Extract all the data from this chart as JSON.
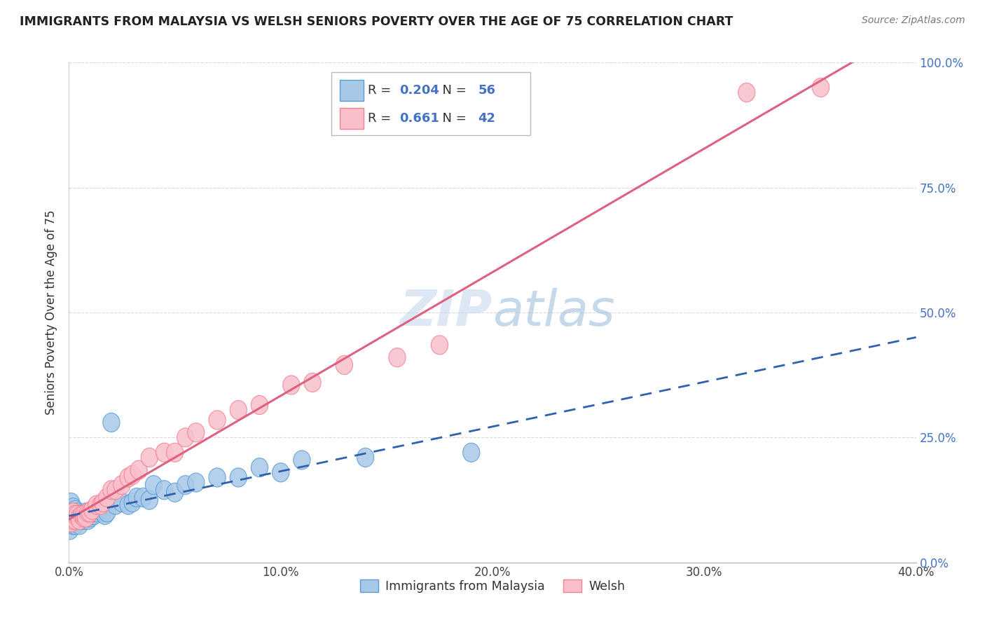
{
  "title": "IMMIGRANTS FROM MALAYSIA VS WELSH SENIORS POVERTY OVER THE AGE OF 75 CORRELATION CHART",
  "source": "Source: ZipAtlas.com",
  "xmin": 0.0,
  "xmax": 0.4,
  "ymin": 0.0,
  "ymax": 1.0,
  "x_tick_labels": [
    "0.0%",
    "10.0%",
    "20.0%",
    "30.0%",
    "40.0%"
  ],
  "x_tick_vals": [
    0.0,
    0.1,
    0.2,
    0.3,
    0.4
  ],
  "y_tick_labels": [
    "100.0%",
    "75.0%",
    "50.0%",
    "25.0%",
    "0.0%"
  ],
  "y_tick_vals": [
    1.0,
    0.75,
    0.5,
    0.25,
    0.0
  ],
  "legend1_label": "Immigrants from Malaysia",
  "legend2_label": "Welsh",
  "R1": "0.204",
  "N1": "56",
  "R2": "0.661",
  "N2": "42",
  "blue_face": "#a8c8e8",
  "blue_edge": "#5b9bd5",
  "pink_face": "#f9c0cc",
  "pink_edge": "#f48090",
  "blue_line_color": "#3060b0",
  "pink_line_color": "#e06080",
  "watermark_text": "ZIPatlas",
  "watermark_color": "#d0dff0",
  "grid_color": "#d0d0d0",
  "title_color": "#222222",
  "source_color": "#777777",
  "label_color": "#4472c4",
  "blue_scatter_x": [
    0.0005,
    0.001,
    0.001,
    0.001,
    0.002,
    0.002,
    0.002,
    0.002,
    0.003,
    0.003,
    0.003,
    0.003,
    0.004,
    0.004,
    0.004,
    0.005,
    0.005,
    0.005,
    0.006,
    0.006,
    0.006,
    0.007,
    0.007,
    0.008,
    0.008,
    0.009,
    0.009,
    0.01,
    0.01,
    0.011,
    0.012,
    0.013,
    0.015,
    0.016,
    0.017,
    0.018,
    0.02,
    0.022,
    0.025,
    0.028,
    0.03,
    0.032,
    0.035,
    0.038,
    0.04,
    0.045,
    0.05,
    0.055,
    0.06,
    0.07,
    0.08,
    0.09,
    0.1,
    0.11,
    0.14,
    0.19
  ],
  "blue_scatter_y": [
    0.065,
    0.1,
    0.12,
    0.085,
    0.09,
    0.11,
    0.075,
    0.095,
    0.08,
    0.105,
    0.09,
    0.075,
    0.1,
    0.085,
    0.095,
    0.085,
    0.095,
    0.075,
    0.09,
    0.095,
    0.085,
    0.085,
    0.09,
    0.09,
    0.1,
    0.085,
    0.095,
    0.09,
    0.1,
    0.095,
    0.095,
    0.1,
    0.105,
    0.1,
    0.095,
    0.1,
    0.28,
    0.115,
    0.12,
    0.115,
    0.12,
    0.13,
    0.13,
    0.125,
    0.155,
    0.145,
    0.14,
    0.155,
    0.16,
    0.17,
    0.17,
    0.19,
    0.18,
    0.205,
    0.21,
    0.22
  ],
  "pink_scatter_x": [
    0.001,
    0.001,
    0.002,
    0.002,
    0.003,
    0.003,
    0.003,
    0.004,
    0.005,
    0.005,
    0.006,
    0.007,
    0.007,
    0.008,
    0.009,
    0.01,
    0.011,
    0.013,
    0.015,
    0.016,
    0.018,
    0.02,
    0.022,
    0.025,
    0.028,
    0.03,
    0.033,
    0.038,
    0.045,
    0.05,
    0.055,
    0.06,
    0.07,
    0.08,
    0.09,
    0.105,
    0.115,
    0.13,
    0.155,
    0.175,
    0.32,
    0.355
  ],
  "pink_scatter_y": [
    0.08,
    0.095,
    0.085,
    0.1,
    0.09,
    0.085,
    0.095,
    0.095,
    0.09,
    0.085,
    0.095,
    0.09,
    0.095,
    0.09,
    0.1,
    0.1,
    0.105,
    0.115,
    0.115,
    0.12,
    0.13,
    0.145,
    0.145,
    0.155,
    0.17,
    0.175,
    0.185,
    0.21,
    0.22,
    0.22,
    0.25,
    0.26,
    0.285,
    0.305,
    0.315,
    0.355,
    0.36,
    0.395,
    0.41,
    0.435,
    0.94,
    0.95
  ],
  "blue_line_x0": 0.0,
  "blue_line_x1": 0.4,
  "pink_line_x0": 0.0,
  "pink_line_x1": 0.4
}
